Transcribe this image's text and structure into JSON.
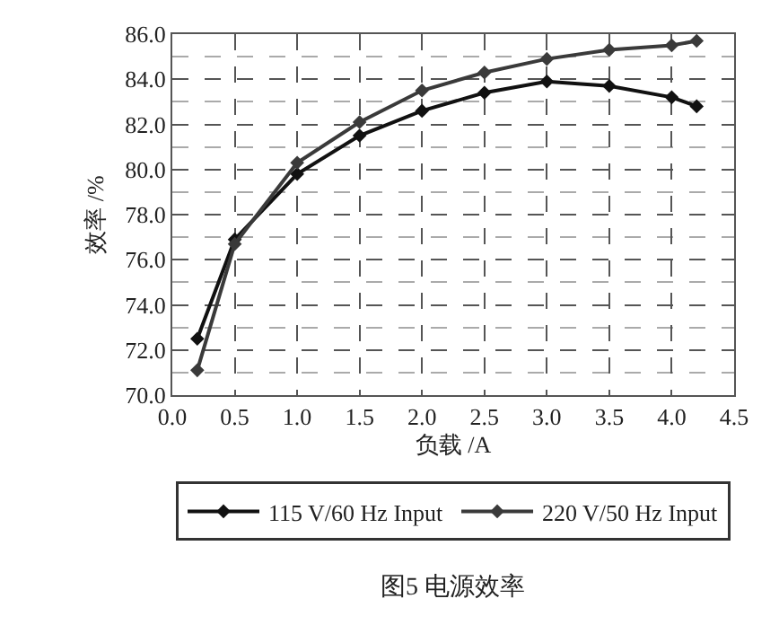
{
  "chart_data": {
    "type": "line",
    "xlabel": "负载 /A",
    "ylabel": "效率 /%",
    "annotations": [
      "图5 电源效率"
    ],
    "x": [
      0.2,
      0.5,
      1.0,
      1.5,
      2.0,
      2.5,
      3.0,
      3.5,
      4.0,
      4.2
    ],
    "series": [
      {
        "name": "115 V/60 Hz Input",
        "color": "#111111",
        "values": [
          72.5,
          76.9,
          79.8,
          81.5,
          82.6,
          83.4,
          83.9,
          83.7,
          83.2,
          82.8
        ]
      },
      {
        "name": "220 V/50 Hz Input",
        "color": "#3a3a3a",
        "values": [
          71.1,
          76.7,
          80.3,
          82.1,
          83.5,
          84.3,
          84.9,
          85.3,
          85.5,
          85.7
        ]
      }
    ],
    "xlim": [
      0,
      4.5
    ],
    "xticks": [
      {
        "value": 0,
        "label": "0.0"
      },
      0.5,
      {
        "value": 1,
        "label": "1.0"
      },
      1.5,
      {
        "value": 2,
        "label": "2.0"
      },
      2.5,
      {
        "value": 3,
        "label": "3.0"
      },
      3.5,
      {
        "value": 4,
        "label": "4.0"
      },
      4.5
    ],
    "ylim": [
      70,
      86
    ],
    "yticks": [
      {
        "value": 70,
        "label": "70.0"
      },
      {
        "value": 71,
        "label": null
      },
      {
        "value": 72,
        "label": "72.0"
      },
      {
        "value": 73,
        "label": null
      },
      {
        "value": 74,
        "label": "74.0"
      },
      {
        "value": 75,
        "label": null
      },
      {
        "value": 76,
        "label": "76.0"
      },
      {
        "value": 77,
        "label": null
      },
      {
        "value": 78,
        "label": "78.0"
      },
      {
        "value": 79,
        "label": null
      },
      {
        "value": 80,
        "label": "80.0"
      },
      {
        "value": 81,
        "label": null
      },
      {
        "value": 82,
        "label": "82.0"
      },
      {
        "value": 83,
        "label": null
      },
      {
        "value": 84,
        "label": "84.0"
      },
      {
        "value": 85,
        "label": null
      },
      {
        "value": 86,
        "label": "86.0"
      }
    ],
    "grid": true,
    "legend": "bottom",
    "marker": "diamond",
    "line_style": "solid"
  }
}
